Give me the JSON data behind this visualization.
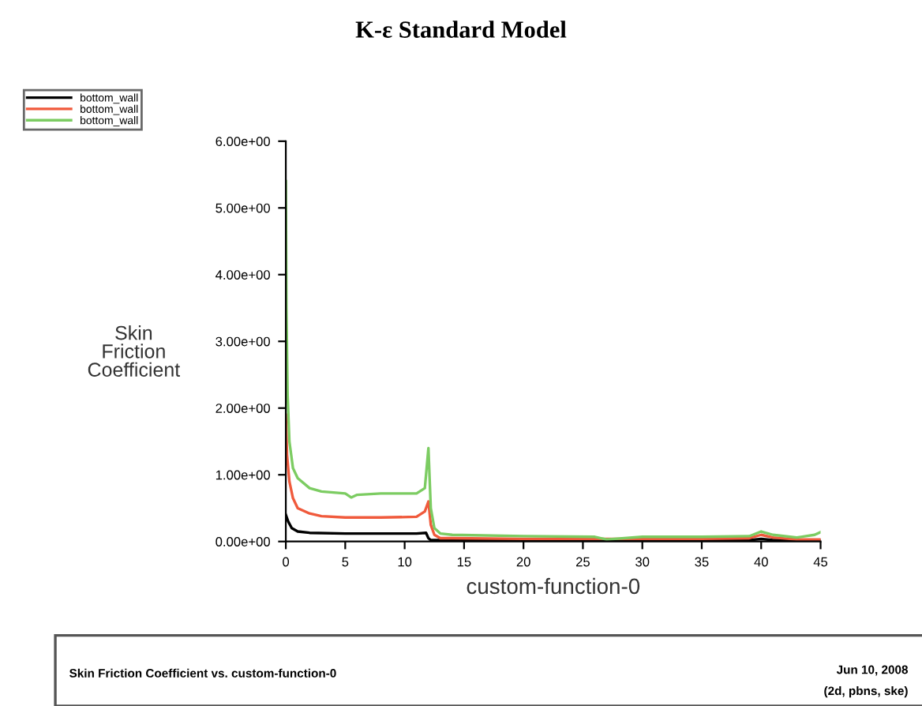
{
  "chart_data": {
    "type": "line",
    "title": "K-ε Standard Model",
    "xlabel": "custom-function-0",
    "ylabel": "Skin\nFriction\nCoefficient",
    "annotations": [
      "Skin Friction Coefficient vs. custom-function-0",
      "Jun 10, 2008",
      "(2d, pbns, ske)"
    ],
    "series": [
      {
        "name": "bottom_wall",
        "color": "#000000",
        "x": [
          0,
          0.2,
          0.5,
          1,
          2,
          5,
          8,
          11,
          11.8,
          12,
          12.2,
          13,
          20,
          26,
          30,
          35,
          39,
          40,
          41,
          43,
          45
        ],
        "values": [
          0.4,
          0.3,
          0.2,
          0.15,
          0.13,
          0.12,
          0.12,
          0.12,
          0.13,
          0.05,
          0.02,
          0.02,
          0.02,
          0.02,
          0.02,
          0.02,
          0.02,
          0.04,
          0.02,
          0.02,
          0.02
        ]
      },
      {
        "name": "bottom_wall",
        "color": "#f05a3c",
        "x": [
          0,
          0.1,
          0.3,
          0.6,
          1,
          2,
          3,
          5,
          8,
          11,
          11.7,
          12,
          12.2,
          12.5,
          13,
          14,
          20,
          26,
          30,
          35,
          39,
          40,
          41,
          43,
          45
        ],
        "values": [
          1.9,
          1.3,
          0.9,
          0.65,
          0.5,
          0.42,
          0.38,
          0.36,
          0.36,
          0.37,
          0.45,
          0.6,
          0.25,
          0.1,
          0.05,
          0.05,
          0.04,
          0.04,
          0.04,
          0.04,
          0.05,
          0.1,
          0.06,
          0.03,
          0.03
        ]
      },
      {
        "name": "bottom_wall",
        "color": "#7ccc62",
        "x": [
          0,
          0.05,
          0.15,
          0.3,
          0.6,
          1,
          2,
          3,
          5,
          5.5,
          6,
          8,
          11,
          11.7,
          12,
          12.2,
          12.5,
          13,
          14,
          20,
          26,
          27,
          30,
          35,
          39,
          40,
          41,
          43,
          44.5,
          45
        ],
        "values": [
          5.4,
          3.5,
          2.2,
          1.5,
          1.1,
          0.95,
          0.8,
          0.75,
          0.72,
          0.66,
          0.7,
          0.72,
          0.72,
          0.8,
          1.4,
          0.5,
          0.2,
          0.12,
          0.1,
          0.08,
          0.07,
          0.03,
          0.07,
          0.07,
          0.08,
          0.15,
          0.1,
          0.06,
          0.1,
          0.14
        ]
      }
    ],
    "xlim": [
      0,
      45
    ],
    "xticks": [
      0,
      5,
      10,
      15,
      20,
      25,
      30,
      35,
      40,
      45
    ],
    "ylim": [
      0,
      6
    ],
    "yticks": [
      {
        "value": 0,
        "label": "0.00e+00"
      },
      {
        "value": 1,
        "label": "1.00e+00"
      },
      {
        "value": 2,
        "label": "2.00e+00"
      },
      {
        "value": 3,
        "label": "3.00e+00"
      },
      {
        "value": 4,
        "label": "4.00e+00"
      },
      {
        "value": 5,
        "label": "5.00e+00"
      },
      {
        "value": 6,
        "label": "6.00e+00"
      }
    ],
    "legend": "top left",
    "grid": false
  }
}
